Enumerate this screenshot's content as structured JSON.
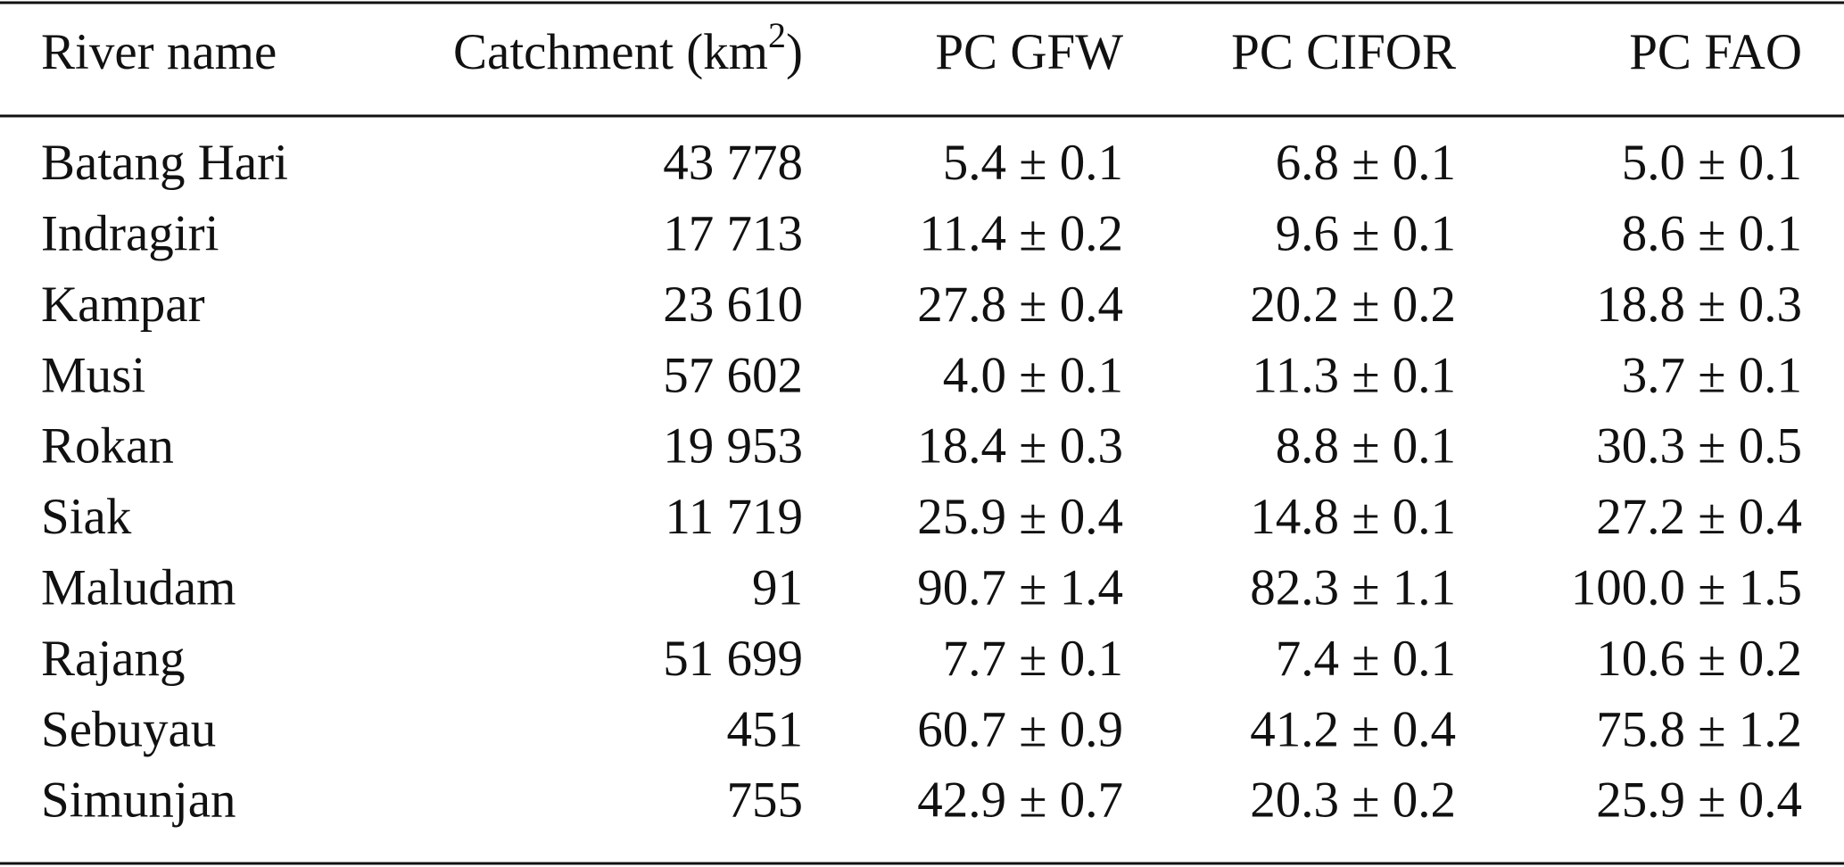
{
  "table": {
    "header": [
      "River name",
      {
        "text": "Catchment (km",
        "sup": "2",
        "after": ")"
      },
      "PC GFW",
      "PC CIFOR",
      "PC FAO"
    ],
    "rows": [
      [
        "Batang Hari",
        "43 778",
        "5.4 ± 0.1",
        "6.8 ± 0.1",
        "5.0 ± 0.1"
      ],
      [
        "Indragiri",
        "17 713",
        "11.4 ± 0.2",
        "9.6 ± 0.1",
        "8.6 ± 0.1"
      ],
      [
        "Kampar",
        "23 610",
        "27.8 ± 0.4",
        "20.2 ± 0.2",
        "18.8 ± 0.3"
      ],
      [
        "Musi",
        "57 602",
        "4.0 ± 0.1",
        "11.3 ± 0.1",
        "3.7 ± 0.1"
      ],
      [
        "Rokan",
        "19 953",
        "18.4 ± 0.3",
        "8.8 ± 0.1",
        "30.3 ± 0.5"
      ],
      [
        "Siak",
        "11 719",
        "25.9 ± 0.4",
        "14.8 ± 0.1",
        "27.2 ± 0.4"
      ],
      [
        "Maludam",
        "91",
        "90.7 ± 1.4",
        "82.3 ± 1.1",
        "100.0 ± 1.5"
      ],
      [
        "Rajang",
        "51 699",
        "7.7 ± 0.1",
        "7.4 ± 0.1",
        "10.6 ± 0.2"
      ],
      [
        "Sebuyau",
        "451",
        "60.7 ± 0.9",
        "41.2 ± 0.4",
        "75.8 ± 1.2"
      ],
      [
        "Simunjan",
        "755",
        "42.9 ± 0.7",
        "20.3 ± 0.2",
        "25.9 ± 0.4"
      ]
    ]
  }
}
